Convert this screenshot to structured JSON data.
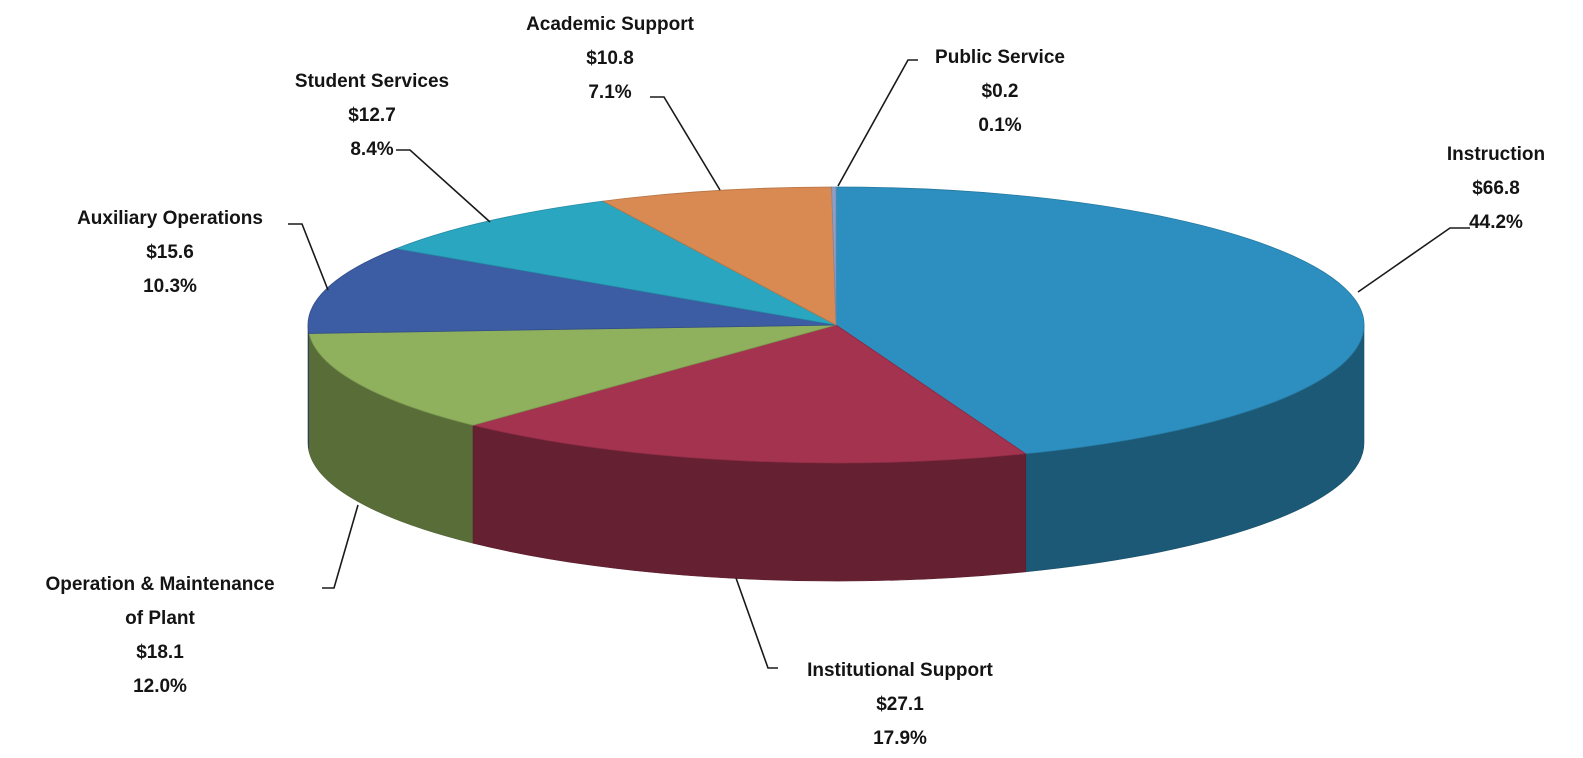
{
  "chart_data": {
    "type": "pie",
    "style": "3d",
    "title": "",
    "slices": [
      {
        "label": "Instruction",
        "value_text": "$66.8",
        "value": 66.8,
        "pct_text": "44.2%",
        "pct": 44.2,
        "color": "#2d8fbf"
      },
      {
        "label": "Institutional Support",
        "value_text": "$27.1",
        "value": 27.1,
        "pct_text": "17.9%",
        "pct": 17.9,
        "color": "#a3334f"
      },
      {
        "label": "Operation & Maintenance of Plant",
        "label_lines": [
          "Operation & Maintenance",
          "of Plant"
        ],
        "value_text": "$18.1",
        "value": 18.1,
        "pct_text": "12.0%",
        "pct": 12.0,
        "color": "#8fb05c"
      },
      {
        "label": "Auxiliary Operations",
        "value_text": "$15.6",
        "value": 15.6,
        "pct_text": "10.3%",
        "pct": 10.3,
        "color": "#3c5ca3"
      },
      {
        "label": "Student Services",
        "value_text": "$12.7",
        "value": 12.7,
        "pct_text": "8.4%",
        "pct": 8.4,
        "color": "#2aa6c1"
      },
      {
        "label": "Academic Support",
        "value_text": "$10.8",
        "value": 10.8,
        "pct_text": "7.1%",
        "pct": 7.1,
        "color": "#d88a52"
      },
      {
        "label": "Public Service",
        "value_text": "$0.2",
        "value": 0.2,
        "pct_text": "0.1%",
        "pct": 0.1,
        "color": "#8f9fc4"
      }
    ]
  }
}
